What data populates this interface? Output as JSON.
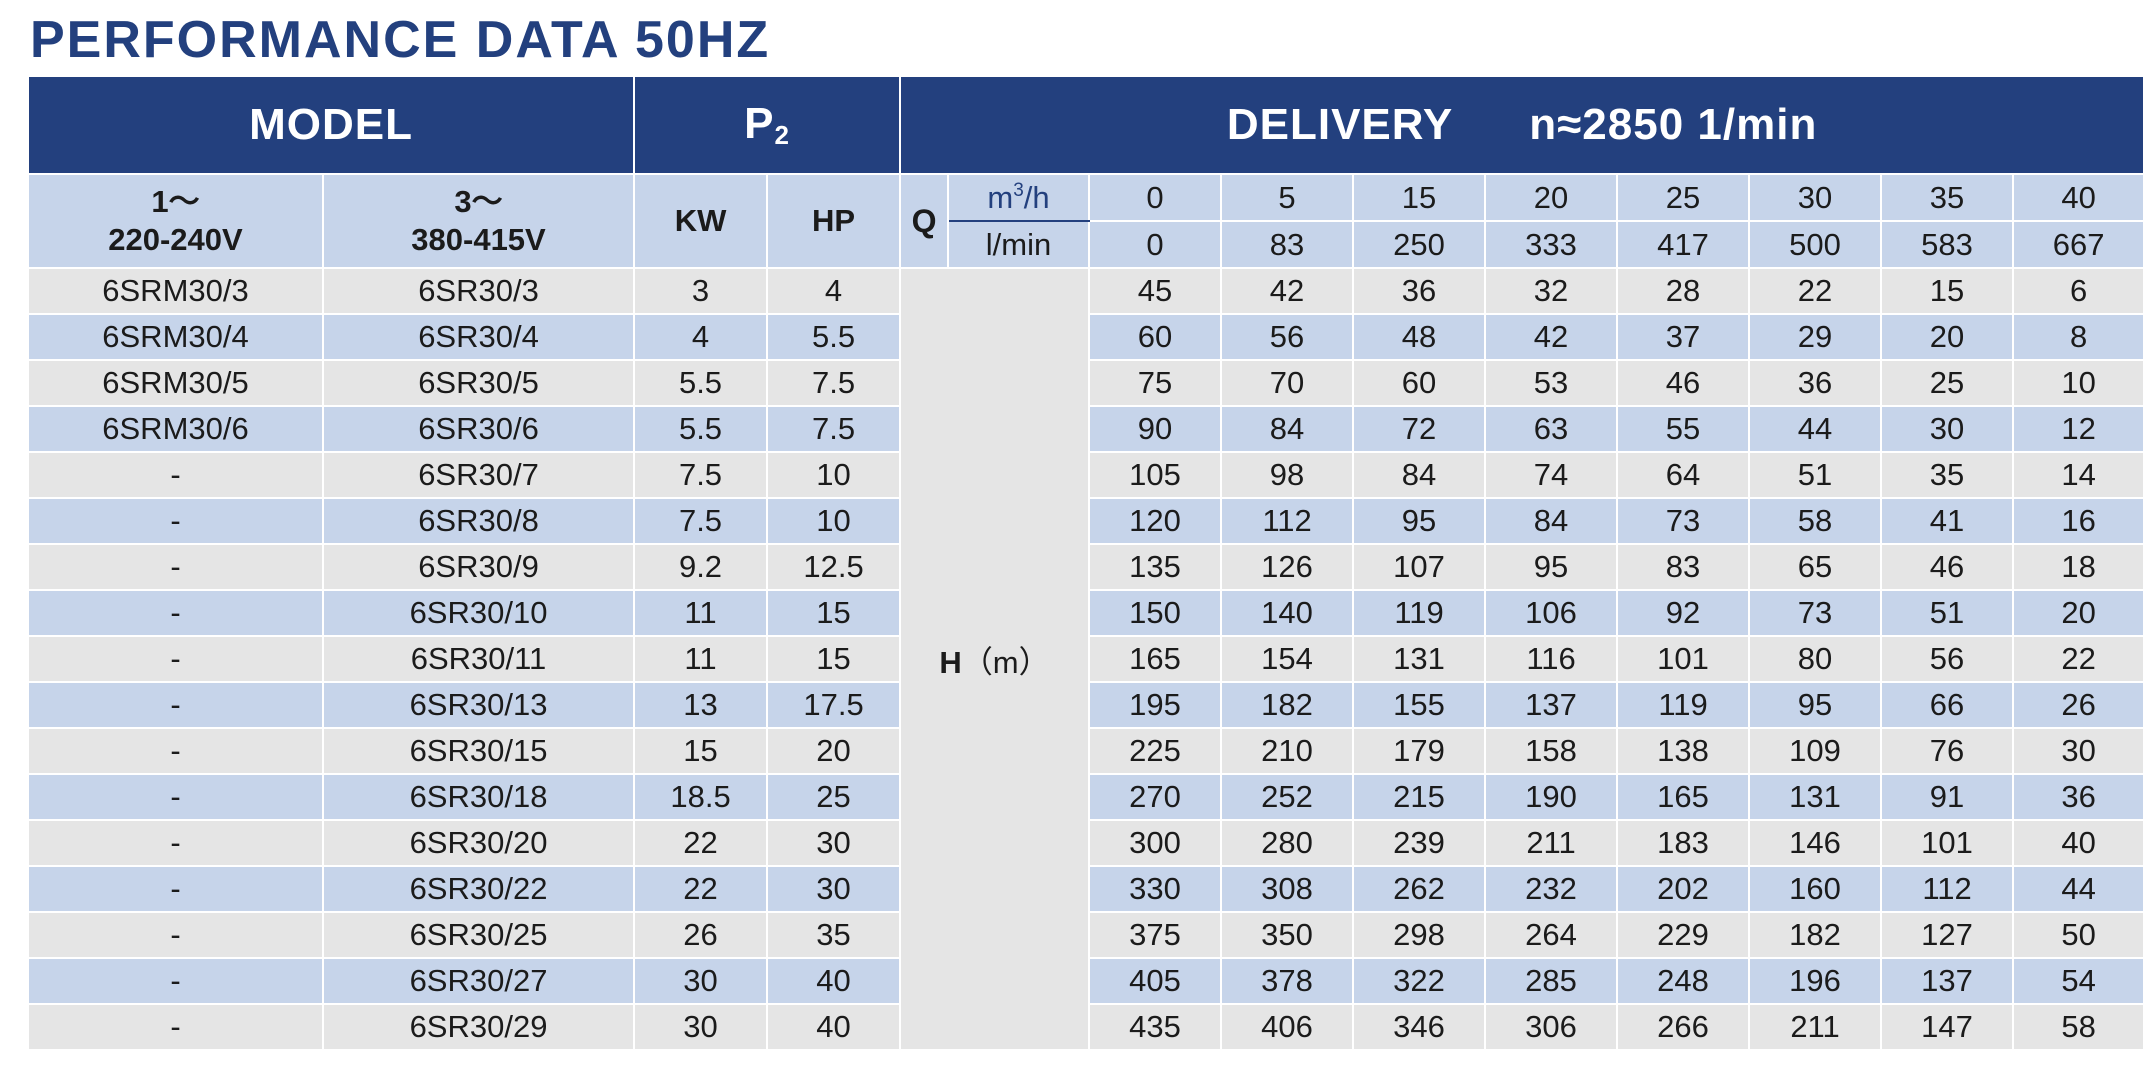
{
  "title": "PERFORMANCE DATA 50HZ",
  "header": {
    "model": "MODEL",
    "power_main": "P",
    "power_sub": "2",
    "delivery": "DELIVERY",
    "speed": "n≈2850 1/min",
    "single_phase_line1": "1～",
    "single_phase_line2": "220-240V",
    "three_phase_line1": "3～",
    "three_phase_line2": "380-415V",
    "kw": "KW",
    "hp": "HP",
    "q_label": "Q",
    "unit_m3h_base": "m",
    "unit_m3h_sup": "3",
    "unit_m3h_tail": "/h",
    "unit_lmin": "l/min",
    "head_label": "H",
    "head_unit": "（m）"
  },
  "flow_m3h": [
    "0",
    "5",
    "15",
    "20",
    "25",
    "30",
    "35",
    "40"
  ],
  "flow_lmin": [
    "0",
    "83",
    "250",
    "333",
    "417",
    "500",
    "583",
    "667"
  ],
  "rows": [
    {
      "single": "6SRM30/3",
      "three": "6SR30/3",
      "kw": "3",
      "hp": "4",
      "head": [
        "45",
        "42",
        "36",
        "32",
        "28",
        "22",
        "15",
        "6"
      ]
    },
    {
      "single": "6SRM30/4",
      "three": "6SR30/4",
      "kw": "4",
      "hp": "5.5",
      "head": [
        "60",
        "56",
        "48",
        "42",
        "37",
        "29",
        "20",
        "8"
      ]
    },
    {
      "single": "6SRM30/5",
      "three": "6SR30/5",
      "kw": "5.5",
      "hp": "7.5",
      "head": [
        "75",
        "70",
        "60",
        "53",
        "46",
        "36",
        "25",
        "10"
      ]
    },
    {
      "single": "6SRM30/6",
      "three": "6SR30/6",
      "kw": "5.5",
      "hp": "7.5",
      "head": [
        "90",
        "84",
        "72",
        "63",
        "55",
        "44",
        "30",
        "12"
      ]
    },
    {
      "single": "-",
      "three": "6SR30/7",
      "kw": "7.5",
      "hp": "10",
      "head": [
        "105",
        "98",
        "84",
        "74",
        "64",
        "51",
        "35",
        "14"
      ]
    },
    {
      "single": "-",
      "three": "6SR30/8",
      "kw": "7.5",
      "hp": "10",
      "head": [
        "120",
        "112",
        "95",
        "84",
        "73",
        "58",
        "41",
        "16"
      ]
    },
    {
      "single": "-",
      "three": "6SR30/9",
      "kw": "9.2",
      "hp": "12.5",
      "head": [
        "135",
        "126",
        "107",
        "95",
        "83",
        "65",
        "46",
        "18"
      ]
    },
    {
      "single": "-",
      "three": "6SR30/10",
      "kw": "11",
      "hp": "15",
      "head": [
        "150",
        "140",
        "119",
        "106",
        "92",
        "73",
        "51",
        "20"
      ]
    },
    {
      "single": "-",
      "three": "6SR30/11",
      "kw": "11",
      "hp": "15",
      "head": [
        "165",
        "154",
        "131",
        "116",
        "101",
        "80",
        "56",
        "22"
      ]
    },
    {
      "single": "-",
      "three": "6SR30/13",
      "kw": "13",
      "hp": "17.5",
      "head": [
        "195",
        "182",
        "155",
        "137",
        "119",
        "95",
        "66",
        "26"
      ]
    },
    {
      "single": "-",
      "three": "6SR30/15",
      "kw": "15",
      "hp": "20",
      "head": [
        "225",
        "210",
        "179",
        "158",
        "138",
        "109",
        "76",
        "30"
      ]
    },
    {
      "single": "-",
      "three": "6SR30/18",
      "kw": "18.5",
      "hp": "25",
      "head": [
        "270",
        "252",
        "215",
        "190",
        "165",
        "131",
        "91",
        "36"
      ]
    },
    {
      "single": "-",
      "three": "6SR30/20",
      "kw": "22",
      "hp": "30",
      "head": [
        "300",
        "280",
        "239",
        "211",
        "183",
        "146",
        "101",
        "40"
      ]
    },
    {
      "single": "-",
      "three": "6SR30/22",
      "kw": "22",
      "hp": "30",
      "head": [
        "330",
        "308",
        "262",
        "232",
        "202",
        "160",
        "112",
        "44"
      ]
    },
    {
      "single": "-",
      "three": "6SR30/25",
      "kw": "26",
      "hp": "35",
      "head": [
        "375",
        "350",
        "298",
        "264",
        "229",
        "182",
        "127",
        "50"
      ]
    },
    {
      "single": "-",
      "three": "6SR30/27",
      "kw": "30",
      "hp": "40",
      "head": [
        "405",
        "378",
        "322",
        "285",
        "248",
        "196",
        "137",
        "54"
      ]
    },
    {
      "single": "-",
      "three": "6SR30/29",
      "kw": "30",
      "hp": "40",
      "head": [
        "435",
        "406",
        "346",
        "306",
        "266",
        "211",
        "147",
        "58"
      ]
    }
  ],
  "colors": {
    "header_bg": "#23407e",
    "subheader_bg": "#c6d4ea",
    "row_gray": "#e5e5e5",
    "row_blue": "#c6d4ea",
    "title_text": "#23407e"
  }
}
